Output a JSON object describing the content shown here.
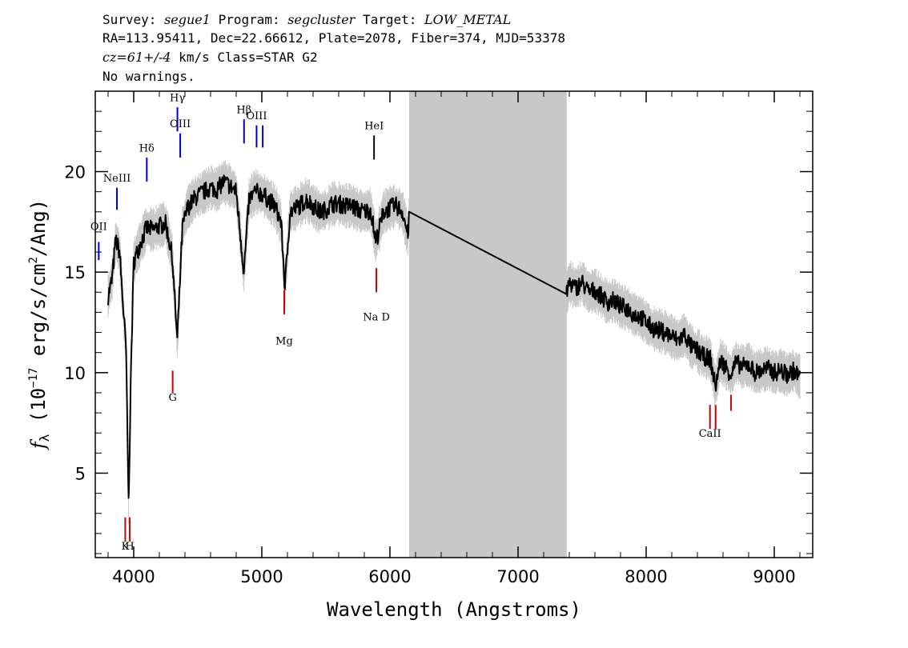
{
  "header": {
    "line1": {
      "survey_label": "Survey: ",
      "survey": "segue1",
      "program_label": " Program: ",
      "program": "segcluster",
      "target_label": " Target: ",
      "target": "LOW_METAL"
    },
    "line2": "RA=113.95411, Dec=22.66612, Plate=2078, Fiber=374, MJD=53378",
    "line3": {
      "cz": "cz=61+/-4",
      "rest": " km/s Class=STAR G2"
    },
    "line4": "No warnings."
  },
  "chart_data": {
    "type": "line",
    "title": "",
    "xlabel": "Wavelength (Angstroms)",
    "ylabel_parts": {
      "f": "f",
      "sub": "λ",
      "a": " (10",
      "exp1": "−17",
      "b": " erg/s/cm",
      "exp2": "2",
      "c": "/Ang)"
    },
    "xlim": [
      3700,
      9300
    ],
    "ylim": [
      0.8,
      24
    ],
    "x_ticks": [
      4000,
      5000,
      6000,
      7000,
      8000,
      9000
    ],
    "y_ticks": [
      5,
      10,
      15,
      20
    ],
    "grid": false,
    "masked_region": [
      6150,
      7380
    ],
    "noise_color": "#c8c8c8",
    "flux_color": "#000000",
    "series": [
      {
        "x": [
          3800,
          3830,
          3860,
          3890,
          3920,
          3940,
          3960,
          3980,
          4000,
          4050,
          4100,
          4150,
          4200,
          4250,
          4300,
          4340,
          4380,
          4420,
          4480,
          4550,
          4600,
          4650,
          4700,
          4750,
          4800,
          4860,
          4900,
          4950,
          5000,
          5050,
          5100,
          5150,
          5180,
          5220,
          5270,
          5350,
          5400,
          5450,
          5500,
          5550,
          5600,
          5650,
          5700,
          5750,
          5800,
          5850,
          5890,
          5950,
          6000,
          6050,
          6100,
          6140,
          6150,
          7380,
          7400,
          7450,
          7500,
          7550,
          7600,
          7650,
          7700,
          7750,
          7800,
          7850,
          7900,
          7950,
          8000,
          8050,
          8100,
          8150,
          8200,
          8250,
          8300,
          8350,
          8400,
          8450,
          8500,
          8540,
          8580,
          8620,
          8662,
          8700,
          8750,
          8800,
          8850,
          8900,
          8950,
          9000,
          9050,
          9100,
          9150,
          9200
        ],
        "y": [
          13.8,
          14.6,
          16.6,
          16.0,
          13.0,
          11.2,
          3.5,
          10.5,
          15.5,
          16.4,
          17.2,
          17.1,
          17.3,
          17.4,
          15.8,
          11.6,
          17.2,
          18.2,
          18.7,
          19.0,
          19.2,
          19.1,
          19.5,
          19.3,
          19.0,
          15.0,
          18.6,
          19.0,
          18.9,
          18.6,
          18.3,
          17.5,
          14.2,
          18.0,
          18.2,
          18.6,
          18.3,
          18.0,
          18.1,
          18.4,
          18.4,
          18.3,
          18.3,
          18.1,
          18.0,
          18.1,
          16.5,
          18.0,
          18.2,
          18.3,
          18.0,
          16.8,
          18.0,
          13.9,
          14.5,
          14.2,
          14.5,
          14.0,
          14.1,
          13.8,
          13.5,
          13.6,
          13.3,
          13.2,
          12.9,
          12.8,
          12.5,
          12.2,
          12.1,
          12.0,
          11.8,
          11.6,
          11.9,
          11.3,
          11.1,
          10.8,
          10.7,
          9.3,
          10.6,
          10.3,
          9.9,
          10.5,
          10.3,
          10.4,
          10.0,
          10.1,
          10.2,
          10.0,
          10.1,
          9.9,
          10.1,
          9.8
        ]
      }
    ],
    "emission_lines": [
      {
        "label": "OII",
        "wave": 3727,
        "y0": 15.6,
        "y1": 16.5,
        "label_y": 17.1,
        "color": "#0000cc"
      },
      {
        "label": "NeIII",
        "wave": 3869,
        "y0": 18.1,
        "y1": 19.2,
        "label_y": 19.5,
        "color": "#0000cc"
      },
      {
        "label": "Hδ",
        "wave": 4102,
        "y0": 19.5,
        "y1": 20.7,
        "label_y": 21.0,
        "color": "#0000cc"
      },
      {
        "label": "Hγ",
        "wave": 4341,
        "y0": 22.0,
        "y1": 23.2,
        "label_y": 23.5,
        "color": "#0000cc"
      },
      {
        "label": "OIII",
        "wave": 4363,
        "y0": 20.7,
        "y1": 21.9,
        "label_y": 22.2,
        "color": "#0000cc"
      },
      {
        "label": "Hβ",
        "wave": 4861,
        "y0": 21.4,
        "y1": 22.6,
        "label_y": 22.9,
        "color": "#0000cc"
      },
      {
        "label": "OIII",
        "wave": 4959,
        "y0": 21.2,
        "y1": 22.3,
        "label_y": 22.6,
        "color": "#0000cc"
      },
      {
        "label": "OIII",
        "wave": 5007,
        "y0": 21.2,
        "y1": 22.3,
        "label_y": null,
        "color": "#0000cc"
      },
      {
        "label": "HeI",
        "wave": 5876,
        "y0": 20.6,
        "y1": 21.8,
        "label_y": 22.1,
        "color": "#000000"
      }
    ],
    "absorption_lines": [
      {
        "label": "K",
        "wave": 3934,
        "y0": 1.6,
        "y1": 2.8,
        "label_y": 1.2,
        "color": "#cc0000"
      },
      {
        "label": "H",
        "wave": 3969,
        "y0": 1.6,
        "y1": 2.8,
        "label_y": 1.2,
        "color": "#cc0000"
      },
      {
        "label": "G",
        "wave": 4304,
        "y0": 9.0,
        "y1": 10.1,
        "label_y": 8.6,
        "color": "#cc0000"
      },
      {
        "label": "Mg",
        "wave": 5175,
        "y0": 12.9,
        "y1": 14.1,
        "label_y": 11.4,
        "color": "#cc0000"
      },
      {
        "label": "Na D",
        "wave": 5894,
        "y0": 14.0,
        "y1": 15.2,
        "label_y": 12.6,
        "color": "#cc0000"
      },
      {
        "label": "CaII",
        "wave": 8498,
        "y0": 7.2,
        "y1": 8.4,
        "label_y": 6.8,
        "color": "#cc0000"
      },
      {
        "label": "",
        "wave": 8542,
        "y0": 7.2,
        "y1": 8.4,
        "label_y": null,
        "color": "#cc0000"
      },
      {
        "label": "",
        "wave": 8662,
        "y0": 8.1,
        "y1": 8.9,
        "label_y": null,
        "color": "#cc0000"
      }
    ]
  }
}
